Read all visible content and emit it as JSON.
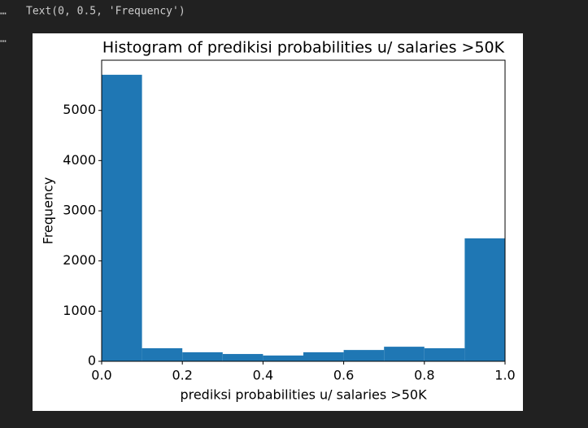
{
  "output": {
    "markers": [
      "…",
      "…"
    ],
    "text": "Text(0, 0.5, 'Frequency')"
  },
  "chart_data": {
    "type": "histogram",
    "title": "Histogram of predikisi probabilities u/ salaries >50K",
    "x_label": "prediksi probabilities u/ salaries >50K",
    "y_label": "Frequency",
    "bins": [
      0,
      0.1,
      0.2,
      0.3,
      0.4,
      0.5,
      0.6,
      0.7,
      0.8,
      0.9,
      1.0
    ],
    "values": [
      5710,
      260,
      180,
      145,
      115,
      180,
      225,
      290,
      260,
      2450
    ],
    "color": "#1f77b4",
    "xlim": [
      0,
      1
    ],
    "xticks": [
      {
        "value": 0,
        "label": "0.0"
      },
      0.2,
      0.4,
      0.6,
      0.8,
      {
        "value": 1,
        "label": "1.0"
      }
    ],
    "ylim": [
      0,
      6000
    ],
    "yticks": [
      0,
      1000,
      2000,
      3000,
      4000,
      5000
    ]
  }
}
